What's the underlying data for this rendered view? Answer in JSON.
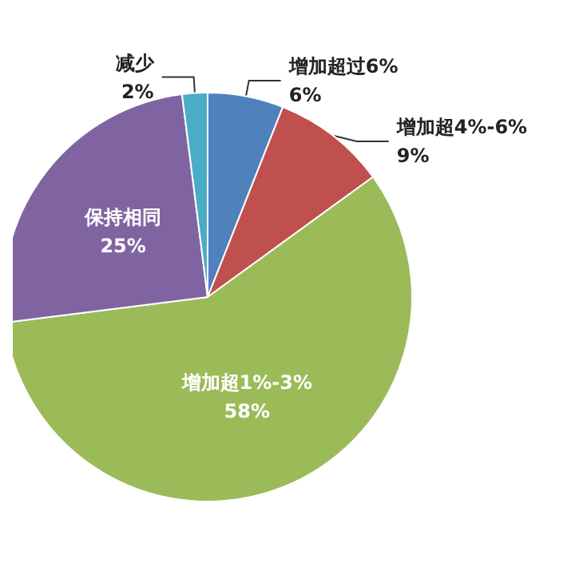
{
  "chart_data": {
    "type": "pie",
    "categories": [
      "增加超过6%",
      "增加超4%-6%",
      "增加超1%-3%",
      "保持相同",
      "减少"
    ],
    "values": [
      6,
      9,
      58,
      25,
      2
    ],
    "value_labels": [
      "6%",
      "9%",
      "58%",
      "25%",
      "2%"
    ],
    "colors": [
      "#4f81bd",
      "#c0504d",
      "#9bbb59",
      "#8064a2",
      "#4bacc6"
    ],
    "legend": false
  }
}
